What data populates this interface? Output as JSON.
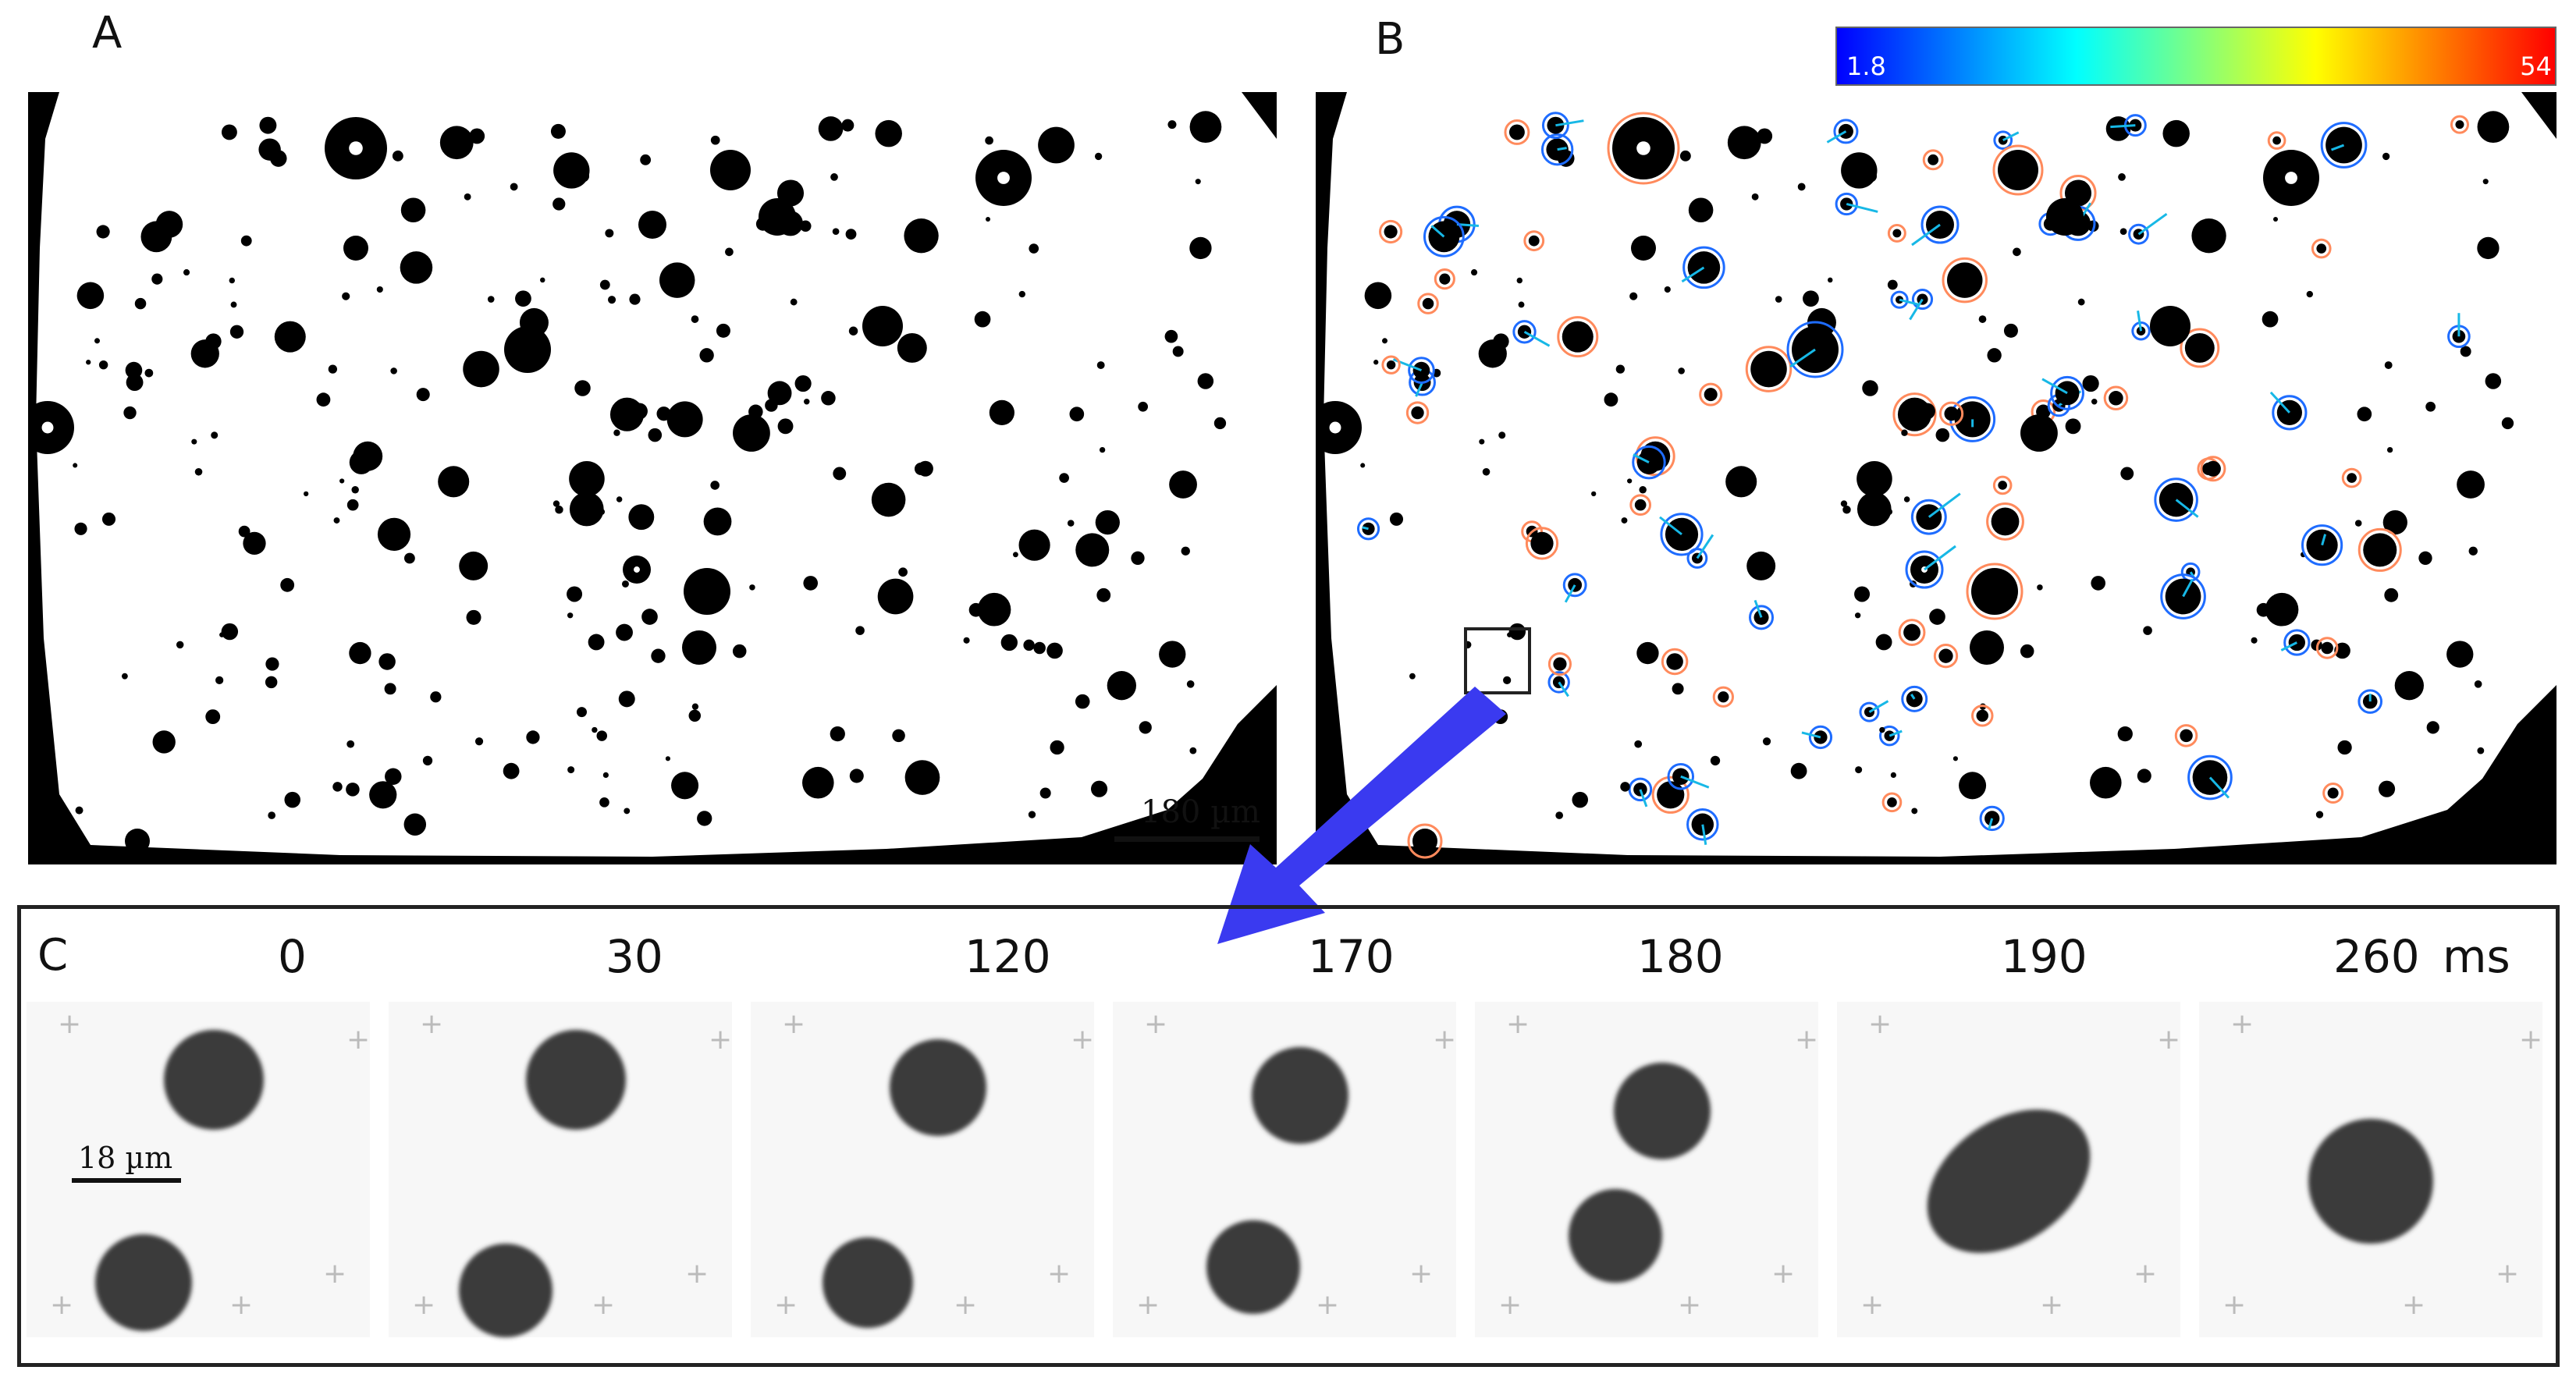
{
  "figure": {
    "panels": [
      {
        "letter": "A"
      },
      {
        "letter": "B"
      },
      {
        "letter": "C"
      }
    ],
    "panel_a": {
      "scale_bar_label": "180 µm"
    },
    "panel_b": {
      "colorbar": {
        "min_label": "1.8",
        "max_label": "54",
        "gradient": [
          "#0000ff",
          "#00ffff",
          "#ffff00",
          "#ff0000"
        ]
      }
    },
    "panel_c": {
      "frame_times": [
        "0",
        "30",
        "120",
        "170",
        "180",
        "190",
        "260"
      ],
      "time_unit": "ms",
      "scale_bar_label": "18 µm"
    },
    "arrow_color": "#3a3af0",
    "track_colors": [
      "#1e6cff",
      "#17b8e6",
      "#ff8a5c",
      "#35c46a"
    ]
  }
}
